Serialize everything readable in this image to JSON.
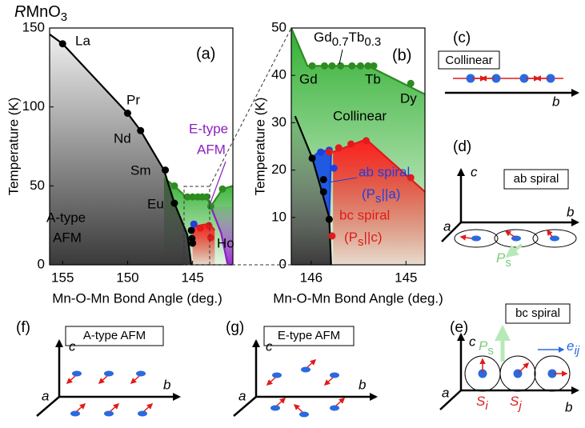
{
  "figure_title": [
    "R",
    "MnO",
    "3"
  ],
  "chart_data": [
    {
      "type": "line",
      "label": "(a)",
      "x_label": "Mn-O-Mn Bond Angle (deg.)",
      "y_label": "Temperature (K)",
      "xlim": [
        156,
        141.9
      ],
      "xticks": [
        155,
        150,
        145
      ],
      "ylim": [
        0,
        150
      ],
      "yticks": [
        0,
        50,
        100,
        150
      ],
      "series": [
        {
          "color": "#2e8b22",
          "fill": "#32b032",
          "fade": "bottom",
          "fill_side": "below",
          "x": [
            147.2,
            146.4,
            145.5,
            143.9,
            143.6,
            142.7,
            141.9
          ],
          "values": [
            55,
            50,
            43,
            43,
            37,
            48,
            50
          ]
        },
        {
          "color": "#8b1fc0",
          "fill": "#9b30d0",
          "fade": "top",
          "fill_side": "right",
          "x": [
            143.6,
            142.8,
            142.3
          ],
          "values": [
            37,
            20,
            0
          ]
        },
        {
          "color": "#e01b1b",
          "fill": "#ff1e1e",
          "fade": "bottom",
          "fill_side": "below",
          "x": [
            145.0,
            144.4,
            143.75,
            143.3
          ],
          "values": [
            24,
            25,
            26,
            22
          ]
        },
        {
          "color": "#000000",
          "fill": "#3a3a3a",
          "fade": "top",
          "fill_side": "left",
          "x": [
            156,
            155,
            150,
            149,
            147.2,
            146.4,
            145.4,
            145.1
          ],
          "values": [
            146,
            140,
            96,
            85,
            60,
            39,
            19,
            0
          ]
        }
      ],
      "markers": [
        {
          "color": "#2e8b22",
          "x": [
            146.4,
            145.4,
            145.0,
            144.6,
            144.25,
            143.9,
            143.6,
            142.7
          ],
          "values": [
            50,
            43,
            43,
            43,
            43,
            43,
            37,
            48
          ]
        },
        {
          "color": "#000000",
          "x": [
            155,
            150,
            149,
            147.1,
            146.4,
            145.1,
            145.05,
            145.0
          ],
          "values": [
            140,
            96,
            85,
            60,
            39,
            21.8,
            16.7,
            13.7
          ]
        },
        {
          "color": "#1f3fe0",
          "x": [
            144.9
          ],
          "values": [
            25.8
          ]
        },
        {
          "color": "#e01b1b",
          "x": [
            144.4,
            143.75,
            143.6
          ],
          "values": [
            23.3,
            24.8,
            17.2
          ]
        }
      ],
      "annotations": [
        "La",
        "Pr",
        "Nd",
        "Sm",
        "Eu",
        "A-type",
        "AFM",
        "E-type",
        "AFM",
        "Ho"
      ]
    },
    {
      "type": "line",
      "label": "(b)",
      "x_label": "Mn-O-Mn Bond Angle (deg.)",
      "y_label": "Temperature (K)",
      "xlim": [
        146.21,
        144.8
      ],
      "xticks": [
        146,
        145
      ],
      "ylim": [
        0,
        50
      ],
      "yticks": [
        0,
        10,
        20,
        30,
        40,
        50
      ],
      "series": [
        {
          "color": "#2e8b22",
          "fill": "#32b032",
          "fade": "bottom",
          "fill_side": "below",
          "x": [
            146.21,
            146.04,
            145.4,
            144.8
          ],
          "values": [
            50,
            42,
            42,
            36
          ]
        },
        {
          "color": "#e01b1b",
          "fill": "#ff1e1e",
          "fade": "bottom",
          "fill_side": "below",
          "x": [
            145.77,
            145.42,
            144.8
          ],
          "values": [
            23.8,
            26.5,
            15.4
          ]
        },
        {
          "color": "#1f3fe0",
          "fill": "#1f5ae0",
          "fade": "none",
          "fill_side": "closed",
          "x": [
            145.99,
            145.9,
            145.79,
            145.81
          ],
          "values": [
            22.6,
            24.2,
            23.8,
            10
          ]
        },
        {
          "color": "#000000",
          "fill": "#3a3a3a",
          "fade": "top",
          "fill_side": "left",
          "x": [
            146.17,
            145.99,
            145.81,
            145.79
          ],
          "values": [
            31.4,
            22.6,
            10,
            0
          ]
        }
      ],
      "markers": [
        {
          "color": "#2e8b22",
          "x": [
            145.99,
            145.86,
            145.78,
            145.69,
            145.57,
            145.48,
            145.4,
            145.34,
            144.95
          ],
          "values": [
            42,
            42,
            42,
            42,
            42,
            42,
            42,
            42,
            38.3
          ]
        },
        {
          "color": "#000000",
          "x": [
            145.99,
            145.87,
            145.87,
            145.81
          ],
          "values": [
            22.5,
            18,
            15.4,
            9.6
          ]
        },
        {
          "color": "#1f3fe0",
          "x": [
            145.9,
            145.81,
            145.76
          ],
          "values": [
            23.8,
            24.2,
            20.4
          ]
        },
        {
          "color": "#e01b1b",
          "x": [
            145.81,
            145.71,
            145.58,
            145.42,
            144.95,
            145.78
          ],
          "values": [
            23.8,
            24.7,
            25.5,
            26.2,
            18.4,
            6.1
          ]
        }
      ],
      "annotations": [
        "Gd",
        "Tb",
        "Dy",
        "Collinear",
        "ab spiral",
        "bc spiral"
      ],
      "composition": [
        "Gd",
        "0.7",
        "Tb",
        "0.3"
      ],
      "ab_polarization": [
        "(P",
        "s",
        "||a)"
      ],
      "bc_polarization": [
        "(P",
        "s",
        "||c)"
      ]
    }
  ],
  "panels": {
    "c": {
      "label": "(c)",
      "box": "Collinear",
      "axis": "b"
    },
    "d": {
      "label": "(d)",
      "box": "ab spiral",
      "axes": [
        "c",
        "a",
        "b"
      ],
      "polarization": [
        "P",
        "s"
      ]
    },
    "e": {
      "label": "(e)",
      "box": "bc spiral",
      "axes": [
        "c",
        "a",
        "b"
      ],
      "polarization": [
        "P",
        "s"
      ],
      "bond": [
        "e",
        "ij"
      ],
      "spins": [
        [
          "S",
          "i"
        ],
        [
          "S",
          "j"
        ]
      ]
    },
    "f": {
      "label": "(f)",
      "box": "A-type AFM",
      "axes": [
        "c",
        "a",
        "b"
      ]
    },
    "g": {
      "label": "(g)",
      "box": "E-type AFM",
      "axes": [
        "c",
        "a",
        "b"
      ]
    }
  }
}
